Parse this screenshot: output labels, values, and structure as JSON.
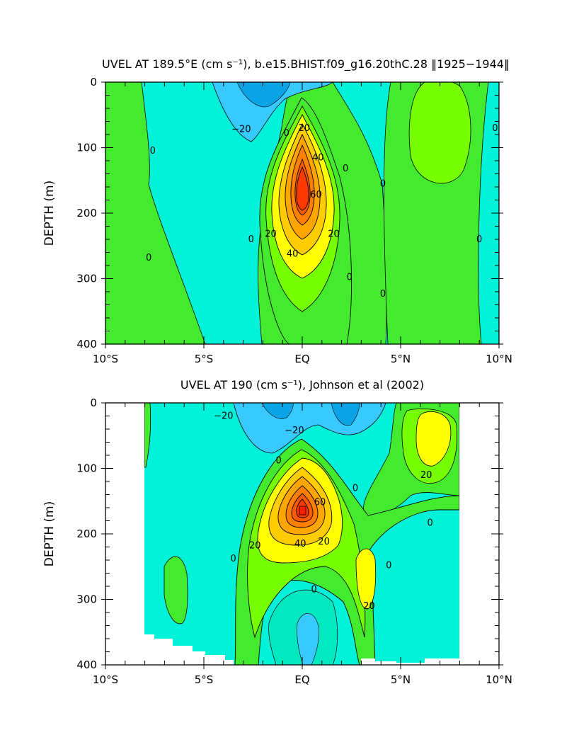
{
  "chart_data": [
    {
      "type": "heatmap",
      "title": "UVEL AT 189.5°E (cm s⁻¹), b.e15.BHIST.f09_g16.20thC.28 ‖1925−1944‖",
      "xlabel": "",
      "ylabel": "DEPTH (m)",
      "xlim": [
        -10,
        10
      ],
      "ylim": [
        400,
        0
      ],
      "xticks": [
        -10,
        -5,
        0,
        5,
        10
      ],
      "xtick_labels": [
        "10°S",
        "5°S",
        "EQ",
        "5°N",
        "10°N"
      ],
      "yticks": [
        0,
        100,
        200,
        300,
        400
      ],
      "ytick_labels": [
        "0",
        "100",
        "200",
        "300",
        "400"
      ],
      "contour_interval": 10,
      "core": {
        "lat": 0,
        "depth": 165,
        "max_speed": 80
      },
      "contour_labels": [
        {
          "text": "−20",
          "lat": -3.1,
          "depth": 72
        },
        {
          "text": "0",
          "lat": -7.6,
          "depth": 105
        },
        {
          "text": "0",
          "lat": -0.8,
          "depth": 78
        },
        {
          "text": "20",
          "lat": 0.1,
          "depth": 70
        },
        {
          "text": "40",
          "lat": 0.8,
          "depth": 115
        },
        {
          "text": "0",
          "lat": 2.2,
          "depth": 132
        },
        {
          "text": "0",
          "lat": 4.1,
          "depth": 155
        },
        {
          "text": "0",
          "lat": 9.8,
          "depth": 70
        },
        {
          "text": "60",
          "lat": 0.7,
          "depth": 172
        },
        {
          "text": "20",
          "lat": -1.6,
          "depth": 232
        },
        {
          "text": "0",
          "lat": -2.6,
          "depth": 240
        },
        {
          "text": "20",
          "lat": 1.6,
          "depth": 232
        },
        {
          "text": "40",
          "lat": -0.5,
          "depth": 262
        },
        {
          "text": "0",
          "lat": 9.0,
          "depth": 240
        },
        {
          "text": "0",
          "lat": -7.8,
          "depth": 268
        },
        {
          "text": "0",
          "lat": 2.4,
          "depth": 298
        },
        {
          "text": "0",
          "lat": 4.1,
          "depth": 323
        }
      ]
    },
    {
      "type": "heatmap",
      "title": "UVEL AT 190 (cm s⁻¹), Johnson et al (2002)",
      "xlabel": "",
      "ylabel": "DEPTH (m)",
      "xlim": [
        -10,
        10
      ],
      "ylim": [
        400,
        0
      ],
      "data_lon_range": [
        -8,
        8
      ],
      "xticks": [
        -10,
        -5,
        0,
        5,
        10
      ],
      "xtick_labels": [
        "10°S",
        "5°S",
        "EQ",
        "5°N",
        "10°N"
      ],
      "yticks": [
        0,
        100,
        200,
        300,
        400
      ],
      "ytick_labels": [
        "0",
        "100",
        "200",
        "300",
        "400"
      ],
      "contour_interval": 10,
      "core": {
        "lat": 0,
        "depth": 150,
        "max_speed": 90
      },
      "contour_labels": [
        {
          "text": "−20",
          "lat": -4.0,
          "depth": 20
        },
        {
          "text": "−20",
          "lat": -0.4,
          "depth": 42
        },
        {
          "text": "0",
          "lat": -1.2,
          "depth": 88
        },
        {
          "text": "0",
          "lat": 2.7,
          "depth": 130
        },
        {
          "text": "60",
          "lat": 0.9,
          "depth": 152
        },
        {
          "text": "20",
          "lat": 6.3,
          "depth": 110
        },
        {
          "text": "0",
          "lat": 6.5,
          "depth": 183
        },
        {
          "text": "20",
          "lat": -2.4,
          "depth": 218
        },
        {
          "text": "40",
          "lat": -0.1,
          "depth": 215
        },
        {
          "text": "20",
          "lat": 1.1,
          "depth": 212
        },
        {
          "text": "0",
          "lat": -3.5,
          "depth": 238
        },
        {
          "text": "0",
          "lat": 4.4,
          "depth": 248
        },
        {
          "text": "0",
          "lat": 0.6,
          "depth": 285
        },
        {
          "text": "20",
          "lat": 3.4,
          "depth": 310
        }
      ]
    }
  ],
  "colors": {
    "below_m20": "#38caff",
    "m30": "#0aa4e6",
    "m20_0": "#00f2d9",
    "m20_0_deep": "#00e8c0",
    "0_10": "#44ea2e",
    "10_20": "#76ff00",
    "20_30": "#ffff00",
    "30_40": "#ffcc00",
    "40_50": "#ffa500",
    "50_60": "#ff8000",
    "60_70": "#ff5a00",
    "70_80": "#ff3a00",
    "core": "#ff1e00",
    "missing": "#ffffff"
  }
}
